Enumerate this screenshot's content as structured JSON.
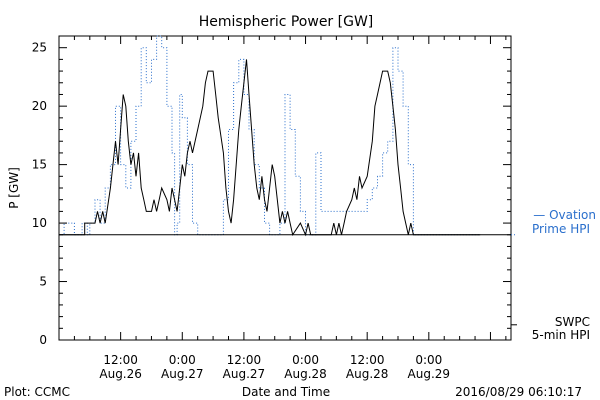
{
  "chart_data": {
    "type": "line",
    "title": "Hemispheric Power [GW]",
    "ylabel": "P [GW]",
    "xlabel": "Date and Time",
    "ylim": [
      0,
      26
    ],
    "xlim": [
      0,
      88
    ],
    "x_unit": "hours since 2016-08-26 00:00",
    "yticks": [
      0,
      5,
      10,
      15,
      20,
      25
    ],
    "xticks": [
      {
        "x": 12,
        "line1": "12:00",
        "line2": "Aug.26"
      },
      {
        "x": 24,
        "line1": "0:00",
        "line2": "Aug.27"
      },
      {
        "x": 36,
        "line1": "12:00",
        "line2": "Aug.27"
      },
      {
        "x": 48,
        "line1": "0:00",
        "line2": "Aug.28"
      },
      {
        "x": 60,
        "line1": "12:00",
        "line2": "Aug.28"
      },
      {
        "x": 72,
        "line1": "0:00",
        "line2": "Aug.29"
      }
    ],
    "series": [
      {
        "name": "Ovation Prime HPI",
        "legend_line1": "— Ovation",
        "legend_line2": "Prime HPI",
        "color": "#2a6fcc",
        "style": "dotted-step",
        "level_y": 9,
        "points": [
          [
            0,
            9
          ],
          [
            1,
            9
          ],
          [
            1,
            10
          ],
          [
            3,
            10
          ],
          [
            3,
            9
          ],
          [
            4.5,
            9
          ],
          [
            4.5,
            10
          ],
          [
            5.5,
            10
          ],
          [
            5.5,
            9
          ],
          [
            6,
            9
          ],
          [
            6,
            10
          ],
          [
            7,
            10
          ],
          [
            7,
            12
          ],
          [
            8,
            12
          ],
          [
            8,
            10
          ],
          [
            9,
            10
          ],
          [
            9,
            13
          ],
          [
            10,
            13
          ],
          [
            10,
            15
          ],
          [
            11,
            15
          ],
          [
            11,
            20
          ],
          [
            12,
            20
          ],
          [
            12,
            15
          ],
          [
            13,
            15
          ],
          [
            13,
            13
          ],
          [
            14,
            13
          ],
          [
            14,
            17
          ],
          [
            15,
            17
          ],
          [
            15,
            20
          ],
          [
            16,
            20
          ],
          [
            16,
            25
          ],
          [
            17,
            25
          ],
          [
            17,
            22
          ],
          [
            18,
            22
          ],
          [
            18,
            24
          ],
          [
            19,
            24
          ],
          [
            19,
            26
          ],
          [
            20,
            26
          ],
          [
            20,
            25
          ],
          [
            21,
            25
          ],
          [
            21,
            20
          ],
          [
            22,
            20
          ],
          [
            22,
            16
          ],
          [
            22.5,
            16
          ],
          [
            22.5,
            9
          ],
          [
            23,
            9
          ],
          [
            23,
            10
          ],
          [
            23.5,
            10
          ],
          [
            23.5,
            21
          ],
          [
            24,
            21
          ],
          [
            24,
            19
          ],
          [
            25,
            19
          ],
          [
            25,
            15
          ],
          [
            26,
            15
          ],
          [
            26,
            10
          ],
          [
            27,
            10
          ],
          [
            27,
            9
          ],
          [
            32,
            9
          ],
          [
            32,
            12
          ],
          [
            33,
            12
          ],
          [
            33,
            18
          ],
          [
            34,
            18
          ],
          [
            34,
            22
          ],
          [
            35,
            22
          ],
          [
            35,
            24
          ],
          [
            36,
            24
          ],
          [
            36,
            21
          ],
          [
            37,
            21
          ],
          [
            37,
            18
          ],
          [
            38,
            18
          ],
          [
            38,
            15
          ],
          [
            39,
            15
          ],
          [
            39,
            13
          ],
          [
            40,
            13
          ],
          [
            40,
            10
          ],
          [
            41,
            10
          ],
          [
            41,
            9
          ],
          [
            43,
            9
          ],
          [
            43,
            10
          ],
          [
            44,
            10
          ],
          [
            44,
            21
          ],
          [
            45,
            21
          ],
          [
            45,
            18
          ],
          [
            46,
            18
          ],
          [
            46,
            14
          ],
          [
            47,
            14
          ],
          [
            47,
            11
          ],
          [
            48,
            11
          ],
          [
            48,
            9
          ],
          [
            50,
            9
          ],
          [
            50,
            16
          ],
          [
            51,
            16
          ],
          [
            51,
            11
          ],
          [
            60,
            11
          ],
          [
            60,
            12
          ],
          [
            61,
            12
          ],
          [
            61,
            13
          ],
          [
            62,
            13
          ],
          [
            62,
            14
          ],
          [
            63,
            14
          ],
          [
            63,
            16
          ],
          [
            64,
            16
          ],
          [
            64,
            17
          ],
          [
            65,
            17
          ],
          [
            65,
            25
          ],
          [
            66,
            25
          ],
          [
            66,
            23
          ],
          [
            67,
            23
          ],
          [
            67,
            20
          ],
          [
            68,
            20
          ],
          [
            68,
            15
          ],
          [
            69,
            15
          ],
          [
            69,
            9
          ],
          [
            71,
            9
          ],
          [
            82,
            9
          ]
        ]
      },
      {
        "name": "SWPC 5-min HPI",
        "legend_line1": "SWPC",
        "legend_line2": "5-min HPI",
        "color": "#000000",
        "style": "solid",
        "level_y": 1.3,
        "points": [
          [
            0,
            9
          ],
          [
            5,
            9
          ],
          [
            5,
            10
          ],
          [
            7,
            10
          ],
          [
            7.5,
            11
          ],
          [
            8,
            10
          ],
          [
            8.5,
            11
          ],
          [
            9,
            10
          ],
          [
            10,
            13
          ],
          [
            11,
            17
          ],
          [
            11.5,
            15
          ],
          [
            12,
            18
          ],
          [
            12.5,
            21
          ],
          [
            13,
            20
          ],
          [
            13.5,
            17
          ],
          [
            14,
            15
          ],
          [
            14.5,
            16
          ],
          [
            15,
            14
          ],
          [
            15.5,
            16
          ],
          [
            16,
            13
          ],
          [
            16.5,
            12
          ],
          [
            17,
            11
          ],
          [
            18,
            11
          ],
          [
            18.5,
            12
          ],
          [
            19,
            11
          ],
          [
            19.5,
            12
          ],
          [
            20,
            13
          ],
          [
            21,
            12
          ],
          [
            21.5,
            11
          ],
          [
            22,
            13
          ],
          [
            22.5,
            12
          ],
          [
            23,
            11
          ],
          [
            23.5,
            13
          ],
          [
            24,
            15
          ],
          [
            24.5,
            14
          ],
          [
            25,
            16
          ],
          [
            25.5,
            17
          ],
          [
            26,
            16
          ],
          [
            27,
            18
          ],
          [
            28,
            20
          ],
          [
            28.5,
            22
          ],
          [
            29,
            23
          ],
          [
            30,
            23
          ],
          [
            30.5,
            21
          ],
          [
            31,
            19
          ],
          [
            32,
            16
          ],
          [
            32.5,
            13
          ],
          [
            33,
            11
          ],
          [
            33.5,
            10
          ],
          [
            34,
            12
          ],
          [
            34.5,
            15
          ],
          [
            35,
            18
          ],
          [
            35.5,
            20
          ],
          [
            36,
            22
          ],
          [
            36.5,
            24
          ],
          [
            37,
            21
          ],
          [
            37.5,
            18
          ],
          [
            38,
            15
          ],
          [
            38.5,
            13
          ],
          [
            39,
            12
          ],
          [
            39.5,
            14
          ],
          [
            40,
            12
          ],
          [
            40.5,
            11
          ],
          [
            41,
            13
          ],
          [
            41.5,
            15
          ],
          [
            42,
            14
          ],
          [
            42.5,
            12
          ],
          [
            43,
            10
          ],
          [
            43.5,
            11
          ],
          [
            44,
            10
          ],
          [
            44.5,
            11
          ],
          [
            45,
            10
          ],
          [
            45.5,
            9
          ],
          [
            47,
            10
          ],
          [
            48,
            9
          ],
          [
            48.5,
            10
          ],
          [
            49,
            9
          ],
          [
            53,
            9
          ],
          [
            53.5,
            10
          ],
          [
            54,
            9
          ],
          [
            54.5,
            10
          ],
          [
            55,
            9
          ],
          [
            55.5,
            10
          ],
          [
            56,
            11
          ],
          [
            57,
            12
          ],
          [
            57.5,
            13
          ],
          [
            58,
            12
          ],
          [
            58.5,
            14
          ],
          [
            59,
            13
          ],
          [
            60,
            14
          ],
          [
            61,
            17
          ],
          [
            61.5,
            20
          ],
          [
            62,
            21
          ],
          [
            63,
            23
          ],
          [
            64,
            23
          ],
          [
            64.5,
            22
          ],
          [
            65,
            20
          ],
          [
            65.5,
            18
          ],
          [
            66,
            15
          ],
          [
            66.5,
            13
          ],
          [
            67,
            11
          ],
          [
            67.5,
            10
          ],
          [
            68,
            9
          ],
          [
            68.5,
            10
          ],
          [
            69,
            9
          ],
          [
            82,
            9
          ]
        ]
      }
    ],
    "footer_left": "Plot: CCMC",
    "footer_right": "2016/08/29 06:10:17",
    "grid": false
  }
}
